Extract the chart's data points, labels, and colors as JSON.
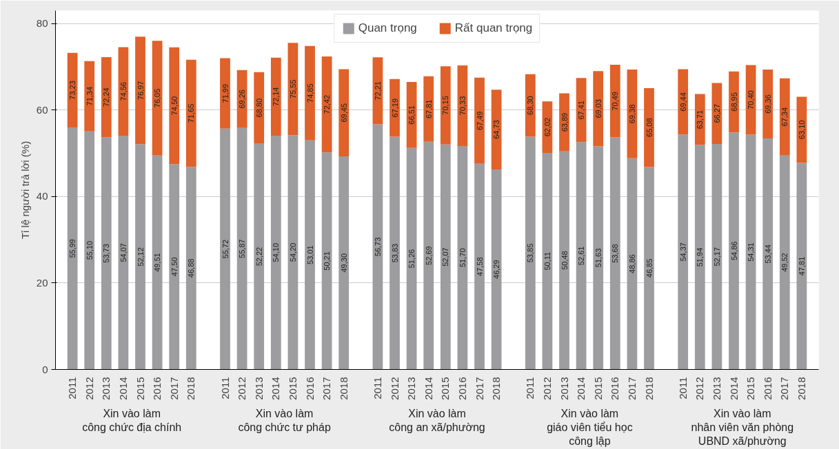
{
  "chart_data": {
    "type": "bar",
    "stacked": true,
    "ylabel": "Tỉ lệ người trả lời (%)",
    "categories": [
      "2011",
      "2012",
      "2013",
      "2014",
      "2015",
      "2016",
      "2017",
      "2018",
      null,
      "2011",
      "2012",
      "2013",
      "2014",
      "2015",
      "2016",
      "2017",
      "2018",
      null,
      "2011",
      "2012",
      "2013",
      "2014",
      "2015",
      "2016",
      "2017",
      "2018",
      null,
      "2011",
      "2012",
      "2013",
      "2014",
      "2015",
      "2016",
      "2017",
      "2018",
      null,
      "2011",
      "2012",
      "2013",
      "2014",
      "2015",
      "2016",
      "2017",
      "2018"
    ],
    "series": [
      {
        "name": "Quan trọng",
        "color": "#9d9d9f",
        "values": [
          55.99,
          55.1,
          53.73,
          54.07,
          52.12,
          49.51,
          47.5,
          46.88,
          null,
          55.72,
          55.87,
          52.22,
          54.1,
          54.2,
          53.01,
          50.21,
          49.3,
          null,
          56.73,
          53.83,
          51.26,
          52.69,
          52.07,
          51.7,
          47.58,
          46.29,
          null,
          53.85,
          50.11,
          50.48,
          52.61,
          51.63,
          53.68,
          48.86,
          46.85,
          null,
          54.37,
          51.94,
          52.17,
          54.86,
          54.31,
          53.44,
          49.52,
          47.81
        ],
        "value_labels": [
          "55,99",
          "55,10",
          "53,73",
          "54,07",
          "52,12",
          "49,51",
          "47,50",
          "46,88",
          null,
          "55,72",
          "55,87",
          "52,22",
          "54,10",
          "54,20",
          "53,01",
          "50,21",
          "49,30",
          null,
          "56,73",
          "53,83",
          "51,26",
          "52,69",
          "52,07",
          "51,70",
          "47,58",
          "46,29",
          null,
          "53,85",
          "50,11",
          "50,48",
          "52,61",
          "51,63",
          "53,68",
          "48,86",
          "46,85",
          null,
          "54,37",
          "51,94",
          "52,17",
          "54,86",
          "54,31",
          "53,44",
          "49,52",
          "47,81"
        ]
      },
      {
        "name": "Rất quan trọng",
        "color": "#e0612a",
        "values": [
          17.24,
          16.24,
          18.51,
          20.49,
          24.85,
          26.54,
          27.0,
          24.77,
          null,
          16.27,
          13.39,
          16.58,
          18.04,
          21.35,
          21.84,
          22.21,
          20.15,
          null,
          15.48,
          13.36,
          15.25,
          15.12,
          18.08,
          18.63,
          19.91,
          18.44,
          null,
          14.45,
          11.91,
          13.41,
          14.8,
          17.4,
          16.81,
          20.52,
          18.23,
          null,
          15.07,
          11.77,
          14.1,
          14.09,
          16.09,
          15.92,
          17.82,
          15.29
        ]
      }
    ],
    "totals": [
      "73,23",
      "71,34",
      "72,24",
      "74,56",
      "76,97",
      "76,05",
      "74,50",
      "71,65",
      null,
      "71,99",
      "69,26",
      "68,80",
      "72,14",
      "75,55",
      "74,85",
      "72,42",
      "69,45",
      null,
      "72,21",
      "67,19",
      "66,51",
      "67,81",
      "70,15",
      "70,33",
      "67,49",
      "64,73",
      null,
      "68,30",
      "62,02",
      "63,89",
      "67,41",
      "69,03",
      "70,49",
      "69,38",
      "65,08",
      null,
      "69,44",
      "63,71",
      "66,27",
      "68,95",
      "70,40",
      "69,36",
      "67,34",
      "63,10"
    ],
    "annotations": [
      "Xin vào làm\ncông chức địa chính",
      "Xin vào làm\ncông chức tư pháp",
      "Xin vào làm\ncông an xã/phường",
      "Xin vào làm\ngiáo viên tiểu học\ncông lập",
      "Xin vào làm\nnhân viên văn phòng\nUBND xã/phường"
    ],
    "ylim": [
      0,
      83
    ],
    "yticks": [
      0,
      20,
      40,
      60,
      80
    ],
    "grid": "y",
    "legend": "top"
  }
}
